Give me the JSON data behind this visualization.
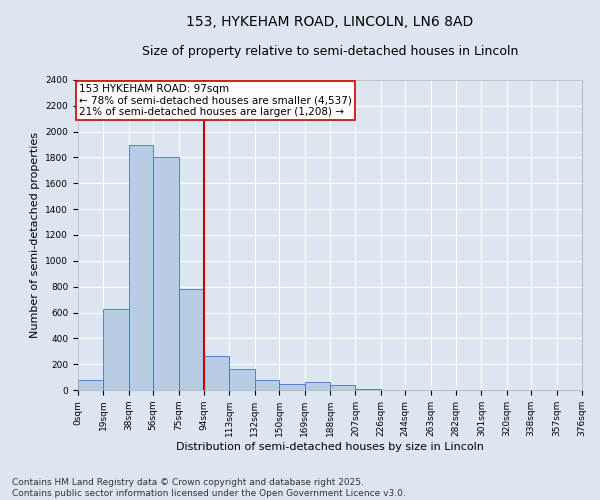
{
  "title_line1": "153, HYKEHAM ROAD, LINCOLN, LN6 8AD",
  "title_line2": "Size of property relative to semi-detached houses in Lincoln",
  "xlabel": "Distribution of semi-detached houses by size in Lincoln",
  "ylabel": "Number of semi-detached properties",
  "annotation_line1": "153 HYKEHAM ROAD: 97sqm",
  "annotation_line2": "← 78% of semi-detached houses are smaller (4,537)",
  "annotation_line3": "21% of semi-detached houses are larger (1,208) →",
  "footer_line1": "Contains HM Land Registry data © Crown copyright and database right 2025.",
  "footer_line2": "Contains public sector information licensed under the Open Government Licence v3.0.",
  "bin_edges": [
    0,
    19,
    38,
    56,
    75,
    94,
    113,
    132,
    150,
    169,
    188,
    207,
    226,
    244,
    263,
    282,
    301,
    320,
    338,
    357,
    376
  ],
  "bar_heights": [
    75,
    625,
    1900,
    1800,
    780,
    265,
    160,
    80,
    50,
    60,
    35,
    10,
    0,
    0,
    0,
    0,
    0,
    0,
    0,
    0
  ],
  "bar_color": "#b8cce4",
  "bar_edge_color": "#4472c4",
  "vline_color": "#cc0000",
  "vline_x": 94,
  "ylim": [
    0,
    2400
  ],
  "yticks": [
    0,
    200,
    400,
    600,
    800,
    1000,
    1200,
    1400,
    1600,
    1800,
    2000,
    2200,
    2400
  ],
  "background_color": "#dce6f1",
  "plot_bg_color": "#dce6f1",
  "annotation_box_color": "#ffffff",
  "annotation_box_edge": "#cc0000",
  "title_fontsize": 10,
  "subtitle_fontsize": 9,
  "axis_label_fontsize": 8,
  "tick_fontsize": 6.5,
  "annotation_fontsize": 7.5,
  "footer_fontsize": 6.5
}
